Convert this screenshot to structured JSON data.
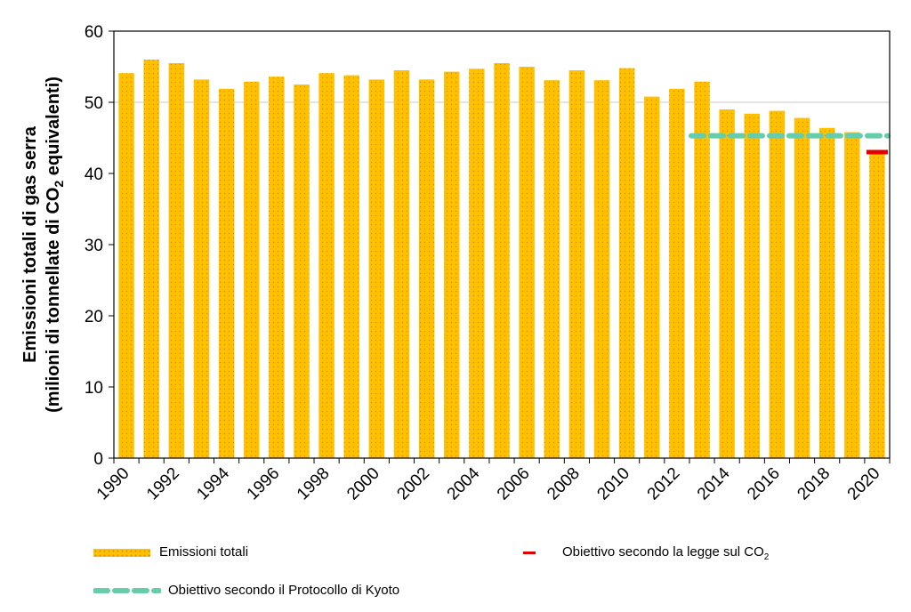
{
  "chart_data": {
    "type": "bar",
    "title": "",
    "xlabel": "",
    "ylabel_line1": "Emissioni totali di gas serra",
    "ylabel_line2_pre": "(milioni di tonnellate di CO",
    "ylabel_line2_sub": "2",
    "ylabel_line2_post": " equivalenti)",
    "ylim": [
      0,
      60
    ],
    "yticks": [
      0,
      10,
      20,
      30,
      40,
      50,
      60
    ],
    "categories": [
      "1990",
      "1991",
      "1992",
      "1993",
      "1994",
      "1995",
      "1996",
      "1997",
      "1998",
      "1999",
      "2000",
      "2001",
      "2002",
      "2003",
      "2004",
      "2005",
      "2006",
      "2007",
      "2008",
      "2009",
      "2010",
      "2011",
      "2012",
      "2013",
      "2014",
      "2015",
      "2016",
      "2017",
      "2018",
      "2019",
      "2020"
    ],
    "xtick_labels": [
      "1990",
      "1992",
      "1994",
      "1996",
      "1998",
      "2000",
      "2002",
      "2004",
      "2006",
      "2008",
      "2010",
      "2012",
      "2014",
      "2016",
      "2018",
      "2020"
    ],
    "series": [
      {
        "name": "Emissioni totali",
        "color": "#ffc000",
        "values": [
          54.1,
          56.0,
          55.5,
          53.2,
          51.9,
          52.9,
          53.6,
          52.5,
          54.1,
          53.8,
          53.2,
          54.5,
          53.2,
          54.3,
          54.7,
          55.5,
          55.0,
          53.1,
          54.5,
          53.1,
          54.8,
          50.8,
          51.9,
          52.9,
          49.0,
          48.4,
          48.8,
          47.8,
          46.4,
          45.8,
          43.0
        ]
      }
    ],
    "kyoto_target": {
      "name": "Obiettivo secondo il Protocollo di Kyoto",
      "value": 45.3,
      "from": "2013",
      "to": "2020",
      "color": "#66ccaa"
    },
    "co2_law_target": {
      "name_pre": "Obiettivo secondo la legge sul CO",
      "name_sub": "2",
      "value": 43.0,
      "year": "2020",
      "color": "#e00000"
    },
    "gridline_value": 50,
    "legend_placement": "bottom"
  }
}
